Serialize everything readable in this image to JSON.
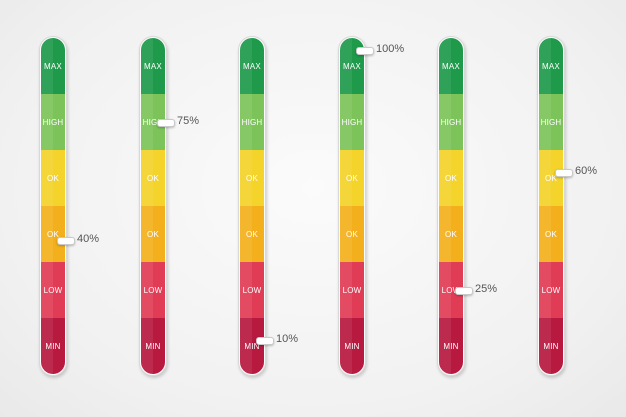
{
  "levels": [
    {
      "label": "MAX",
      "color": "#1e9a4a"
    },
    {
      "label": "HIGH",
      "color": "#7cc35a"
    },
    {
      "label": "OK",
      "color": "#f4d32a"
    },
    {
      "label": "OK",
      "color": "#f3b01c"
    },
    {
      "label": "LOW",
      "color": "#e13c56"
    },
    {
      "label": "MIN",
      "color": "#b7193f"
    }
  ],
  "meters": [
    {
      "value": 40,
      "indicator": ""
    },
    {
      "value": 75,
      "indicator": "75%"
    },
    {
      "value": 10,
      "indicator": "10%"
    },
    {
      "value": 100,
      "indicator": "100%"
    },
    {
      "value": 25,
      "indicator": "25%"
    },
    {
      "value": 60,
      "indicator": "60%"
    }
  ],
  "first_indicator": "40%"
}
